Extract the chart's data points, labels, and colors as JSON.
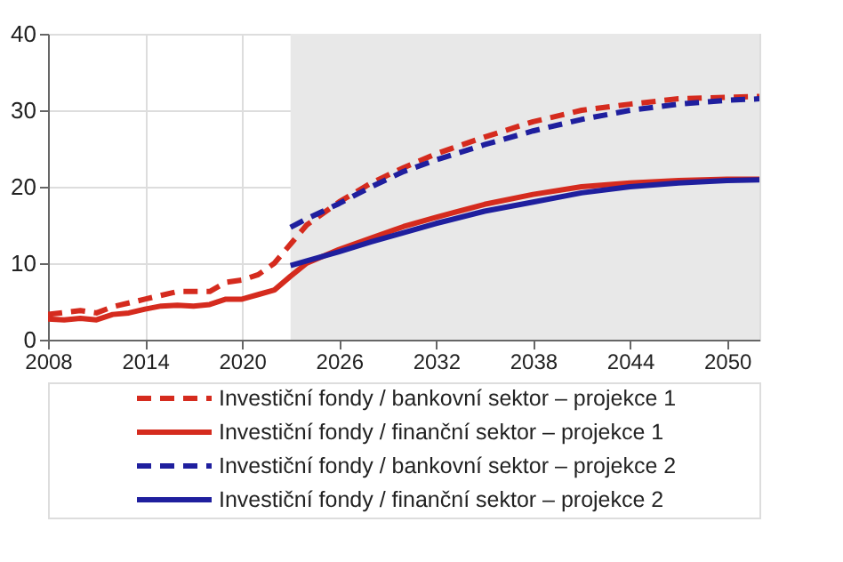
{
  "chart_data": {
    "type": "line",
    "xlim": [
      2008,
      2052
    ],
    "xticks": [
      2008,
      2014,
      2020,
      2026,
      2032,
      2038,
      2044,
      2050
    ],
    "ylim": [
      0,
      40
    ],
    "yticks": [
      0,
      10,
      20,
      30,
      40
    ],
    "grid": true,
    "legend": "bottom",
    "bands": [
      {
        "axis": "x",
        "from": 2023,
        "to": 2052,
        "color": "#e8e8e8"
      }
    ],
    "series": [
      {
        "name": "Investiční fondy / bankovní sektor – projekce 1",
        "color": "#d52b1e",
        "line_style": "dashed",
        "x": [
          2008,
          2010,
          2011,
          2012,
          2014,
          2016,
          2018,
          2019,
          2020,
          2021,
          2022,
          2023,
          2024,
          2026,
          2028,
          2030,
          2032,
          2035,
          2038,
          2041,
          2044,
          2047,
          2050,
          2052
        ],
        "values": [
          3.3,
          3.8,
          3.5,
          4.3,
          5.3,
          6.3,
          6.3,
          7.5,
          7.8,
          8.5,
          10,
          12.5,
          15,
          18,
          20.5,
          22.5,
          24.3,
          26.5,
          28.5,
          30,
          30.8,
          31.5,
          31.7,
          31.8
        ]
      },
      {
        "name": "Investiční fondy / finanční sektor – projekce 1",
        "color": "#d52b1e",
        "line_style": "solid",
        "x": [
          2008,
          2009,
          2010,
          2011,
          2012,
          2013,
          2014,
          2015,
          2016,
          2017,
          2018,
          2019,
          2020,
          2021,
          2022,
          2023,
          2024,
          2026,
          2028,
          2030,
          2032,
          2035,
          2038,
          2041,
          2044,
          2047,
          2050,
          2052
        ],
        "values": [
          2.7,
          2.6,
          2.8,
          2.6,
          3.3,
          3.5,
          4.0,
          4.4,
          4.5,
          4.4,
          4.6,
          5.3,
          5.3,
          5.9,
          6.5,
          8.3,
          10,
          11.8,
          13.3,
          14.8,
          16,
          17.7,
          19,
          20,
          20.5,
          20.8,
          21,
          21
        ]
      },
      {
        "name": "Investiční fondy / bankovní sektor – projekce 2",
        "color": "#1f1f9e",
        "line_style": "dashed",
        "x": [
          2023,
          2024,
          2026,
          2028,
          2030,
          2032,
          2035,
          2038,
          2041,
          2044,
          2047,
          2050,
          2052
        ],
        "values": [
          14.7,
          15.8,
          17.8,
          20,
          22,
          23.5,
          25.5,
          27.3,
          28.8,
          30,
          30.8,
          31.3,
          31.5
        ]
      },
      {
        "name": "Investiční fondy / finanční sektor – projekce 2",
        "color": "#1f1f9e",
        "line_style": "solid",
        "x": [
          2023,
          2024,
          2026,
          2028,
          2030,
          2032,
          2035,
          2038,
          2041,
          2044,
          2047,
          2050,
          2052
        ],
        "values": [
          9.7,
          10.3,
          11.5,
          12.8,
          14,
          15.2,
          16.8,
          18,
          19.2,
          20,
          20.5,
          20.8,
          20.9
        ]
      }
    ]
  }
}
